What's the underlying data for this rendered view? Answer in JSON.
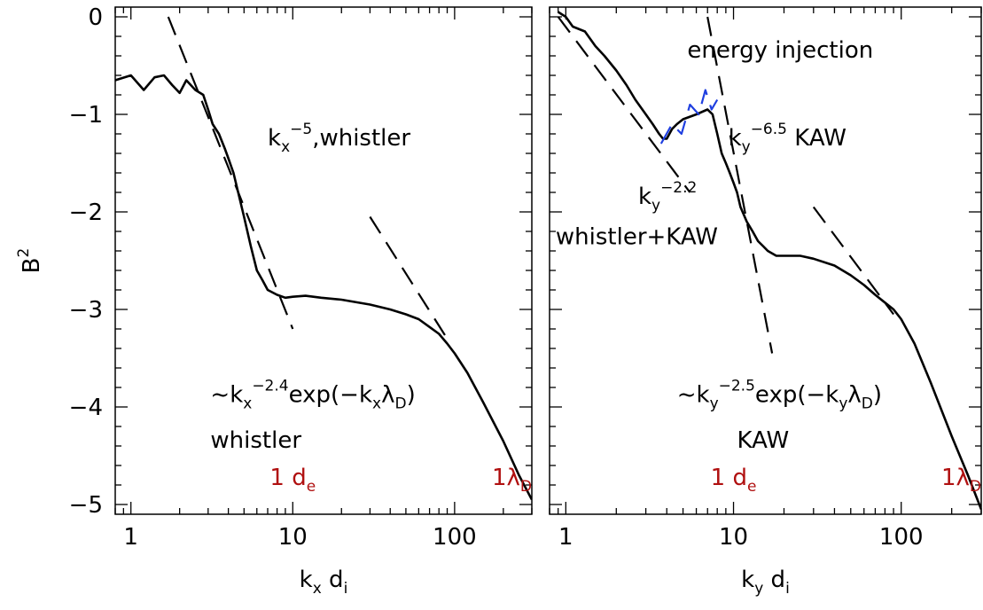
{
  "chart_data": [
    {
      "type": "line",
      "xscale": "log",
      "xlim": [
        0.8,
        300
      ],
      "ylim": [
        -5.1,
        0.1
      ],
      "xticks": [
        {
          "v": 1,
          "label": "1"
        },
        {
          "v": 10,
          "label": "10"
        },
        {
          "v": 100,
          "label": "100"
        }
      ],
      "yticks": [
        {
          "v": 0,
          "label": "0"
        },
        {
          "v": -1,
          "label": "−1"
        },
        {
          "v": -2,
          "label": "−2"
        },
        {
          "v": -3,
          "label": "−3"
        },
        {
          "v": -4,
          "label": "−4"
        },
        {
          "v": -5,
          "label": "−5"
        }
      ],
      "xlabel": {
        "base": "k",
        "sub": "x",
        "rest": " d",
        "sub2": "i"
      },
      "ylabel": {
        "base": "B",
        "sup": "2"
      },
      "series": [
        {
          "style": "solid",
          "color": "#000000",
          "x": [
            0.8,
            1.0,
            1.2,
            1.4,
            1.6,
            1.8,
            2.0,
            2.2,
            2.5,
            2.8,
            3.0,
            3.2,
            3.5,
            3.8,
            4.0,
            4.3,
            4.6,
            5.0,
            5.5,
            6.0,
            6.5,
            7.0,
            8.0,
            9.0,
            10.0,
            12.0,
            15.0,
            20.0,
            30.0,
            40.0,
            50.0,
            60.0,
            70.0,
            80.0,
            90.0,
            100.0,
            120.0,
            150.0,
            200.0,
            250.0,
            300.0
          ],
          "y": [
            -0.65,
            -0.6,
            -0.75,
            -0.62,
            -0.6,
            -0.7,
            -0.78,
            -0.65,
            -0.75,
            -0.8,
            -0.95,
            -1.1,
            -1.2,
            -1.35,
            -1.45,
            -1.6,
            -1.8,
            -2.05,
            -2.35,
            -2.6,
            -2.7,
            -2.8,
            -2.85,
            -2.88,
            -2.87,
            -2.86,
            -2.88,
            -2.9,
            -2.95,
            -3.0,
            -3.05,
            -3.1,
            -3.18,
            -3.25,
            -3.35,
            -3.45,
            -3.65,
            -3.95,
            -4.35,
            -4.7,
            -4.95
          ]
        },
        {
          "style": "dashed",
          "color": "#000000",
          "x": [
            1.7,
            10.0
          ],
          "y": [
            0.0,
            -3.2
          ]
        },
        {
          "style": "dashed",
          "color": "#000000",
          "x": [
            30.0,
            90.0
          ],
          "y": [
            -2.05,
            -3.3
          ]
        }
      ],
      "annotations": [
        {
          "id": "kx-whistler",
          "base": "k",
          "sub": "x",
          "sup": "−5",
          "rest": ",whistler",
          "x": 7.0,
          "y": -1.32,
          "anchor": "start",
          "color": "#000000"
        },
        {
          "id": "fit-formula",
          "pre": "~k",
          "sub": "x",
          "sup": "−2.4",
          "rest": "exp(−k",
          "sub2": "x",
          "rest2": "λ",
          "sub3": "D",
          "rest3": ")",
          "x": 3.1,
          "y": -3.95,
          "anchor": "start",
          "color": "#000000"
        },
        {
          "id": "whistler-label",
          "text": "whistler",
          "x": 3.1,
          "y": -4.42,
          "anchor": "start",
          "color": "#000000"
        },
        {
          "id": "de-mark",
          "base": "1  d",
          "sub": "e",
          "x": 10.0,
          "y": -4.8,
          "anchor": "middle",
          "color": "#b01010"
        },
        {
          "id": "lambda-mark",
          "base": "1λ",
          "sub": "D",
          "x": 300.0,
          "y": -4.8,
          "anchor": "end",
          "color": "#b01010"
        }
      ]
    },
    {
      "type": "line",
      "xscale": "log",
      "xlim": [
        0.8,
        300
      ],
      "ylim": [
        -5.1,
        0.1
      ],
      "xticks": [
        {
          "v": 1,
          "label": "1"
        },
        {
          "v": 10,
          "label": "10"
        },
        {
          "v": 100,
          "label": "100"
        }
      ],
      "yticks": [],
      "xlabel": {
        "base": "k",
        "sub": "y",
        "rest": " d",
        "sub2": "i"
      },
      "series": [
        {
          "style": "solid",
          "color": "#000000",
          "x": [
            0.9,
            1.0,
            1.1,
            1.3,
            1.5,
            1.7,
            2.0,
            2.3,
            2.6,
            3.0,
            3.3,
            3.6,
            3.8,
            4.0,
            4.3,
            4.6,
            5.0,
            6.0,
            7.0,
            7.5,
            8.0,
            8.5,
            9.0,
            9.5,
            10.0,
            10.5,
            11.0,
            12.0,
            13.0,
            14.0,
            15.0,
            16.0,
            18.0,
            20.0,
            25.0,
            30.0,
            40.0,
            50.0,
            60.0,
            70.0,
            80.0,
            90.0,
            100.0,
            120.0,
            150.0,
            200.0,
            250.0,
            300.0
          ],
          "y": [
            0.05,
            0.0,
            -0.1,
            -0.15,
            -0.3,
            -0.4,
            -0.55,
            -0.7,
            -0.85,
            -1.0,
            -1.1,
            -1.2,
            -1.25,
            -1.25,
            -1.15,
            -1.1,
            -1.05,
            -1.0,
            -0.95,
            -1.0,
            -1.2,
            -1.4,
            -1.5,
            -1.6,
            -1.7,
            -1.8,
            -1.95,
            -2.1,
            -2.2,
            -2.3,
            -2.35,
            -2.4,
            -2.45,
            -2.45,
            -2.45,
            -2.48,
            -2.55,
            -2.65,
            -2.75,
            -2.85,
            -2.93,
            -3.0,
            -3.1,
            -3.35,
            -3.75,
            -4.3,
            -4.7,
            -5.05
          ]
        },
        {
          "style": "dashed",
          "color": "#000000",
          "x": [
            0.9,
            5.5
          ],
          "y": [
            0.0,
            -1.8
          ]
        },
        {
          "style": "dashed",
          "color": "#000000",
          "x": [
            7.0,
            17.0
          ],
          "y": [
            0.0,
            -3.45
          ]
        },
        {
          "style": "dashed",
          "color": "#000000",
          "x": [
            30.0,
            90.0
          ],
          "y": [
            -1.95,
            -3.05
          ]
        },
        {
          "style": "dashed",
          "color": "#1f3fe0",
          "x": [
            3.7,
            4.3,
            4.9,
            5.5,
            6.2,
            6.8,
            7.4,
            8.0
          ],
          "y": [
            -1.3,
            -1.1,
            -1.2,
            -0.9,
            -1.0,
            -0.75,
            -0.95,
            -0.85
          ]
        }
      ],
      "annotations": [
        {
          "id": "energy-injection",
          "text": "energy injection",
          "x": 5.3,
          "y": -0.42,
          "anchor": "start",
          "color": "#1f3fe0"
        },
        {
          "id": "ky-kaw",
          "base": "k",
          "sub": "y",
          "sup": "−6.5",
          "rest": "  KAW",
          "x": 9.3,
          "y": -1.32,
          "anchor": "start",
          "color": "#000000"
        },
        {
          "id": "ky-22",
          "base": "k",
          "sub": "y",
          "sup": "−2.2",
          "x": 2.7,
          "y": -1.92,
          "anchor": "start",
          "color": "#000000"
        },
        {
          "id": "whistler-kaw",
          "text": "whistler+KAW",
          "x": 0.87,
          "y": -2.33,
          "anchor": "start",
          "color": "#000000"
        },
        {
          "id": "fit-formula-y",
          "pre": "~k",
          "sub": "y",
          "sup": "−2.5",
          "rest": "exp(−k",
          "sub2": "y",
          "rest2": "λ",
          "sub3": "D",
          "rest3": ")",
          "x": 4.6,
          "y": -3.95,
          "anchor": "start",
          "color": "#000000"
        },
        {
          "id": "kaw-label",
          "text": "KAW",
          "x": 15.0,
          "y": -4.42,
          "anchor": "middle",
          "color": "#000000"
        },
        {
          "id": "de-mark-y",
          "base": "1  d",
          "sub": "e",
          "x": 10.0,
          "y": -4.8,
          "anchor": "middle",
          "color": "#b01010"
        },
        {
          "id": "lambda-mark-y",
          "base": "1λ",
          "sub": "D",
          "x": 300.0,
          "y": -4.8,
          "anchor": "end",
          "color": "#b01010"
        }
      ]
    }
  ]
}
